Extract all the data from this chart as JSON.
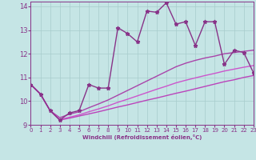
{
  "xlabel": "Windchill (Refroidissement éolien,°C)",
  "xlim": [
    0,
    23
  ],
  "ylim": [
    9,
    14.2
  ],
  "yticks": [
    9,
    10,
    11,
    12,
    13,
    14
  ],
  "xticks": [
    0,
    1,
    2,
    3,
    4,
    5,
    6,
    7,
    8,
    9,
    10,
    11,
    12,
    13,
    14,
    15,
    16,
    17,
    18,
    19,
    20,
    21,
    22,
    23
  ],
  "bg_color": "#c5e5e5",
  "grid_color": "#a8cccc",
  "line_main": {
    "x": [
      0,
      1,
      2,
      3,
      4,
      5,
      6,
      7,
      8,
      9,
      10,
      11,
      12,
      13,
      14,
      15,
      16,
      17,
      18,
      19,
      20,
      21,
      22,
      23
    ],
    "y": [
      10.7,
      10.3,
      9.6,
      9.2,
      9.5,
      9.6,
      10.7,
      10.55,
      10.55,
      13.1,
      12.85,
      12.5,
      13.8,
      13.75,
      14.15,
      13.25,
      13.35,
      12.35,
      13.35,
      13.35,
      11.55,
      12.15,
      12.05,
      11.2
    ],
    "color": "#883388",
    "lw": 1.0,
    "marker": "*",
    "ms": 3.5
  },
  "line_upper": {
    "x": [
      0,
      1,
      2,
      3,
      4,
      5,
      6,
      7,
      8,
      9,
      10,
      11,
      12,
      13,
      14,
      15,
      16,
      17,
      18,
      19,
      20,
      21,
      22,
      23
    ],
    "y": [
      10.7,
      10.3,
      9.6,
      9.3,
      9.45,
      9.55,
      9.72,
      9.88,
      10.05,
      10.25,
      10.45,
      10.65,
      10.85,
      11.05,
      11.25,
      11.45,
      11.6,
      11.72,
      11.82,
      11.9,
      12.0,
      12.05,
      12.1,
      12.15
    ],
    "color": "#aa44aa",
    "lw": 1.0
  },
  "line_mid": {
    "x": [
      0,
      1,
      2,
      3,
      4,
      5,
      6,
      7,
      8,
      9,
      10,
      11,
      12,
      13,
      14,
      15,
      16,
      17,
      18,
      19,
      20,
      21,
      22,
      23
    ],
    "y": [
      10.7,
      10.3,
      9.6,
      9.22,
      9.32,
      9.42,
      9.55,
      9.67,
      9.8,
      9.95,
      10.08,
      10.22,
      10.36,
      10.5,
      10.63,
      10.77,
      10.88,
      10.98,
      11.08,
      11.17,
      11.27,
      11.35,
      11.43,
      11.5
    ],
    "color": "#cc55cc",
    "lw": 1.0
  },
  "line_lower": {
    "x": [
      0,
      1,
      2,
      3,
      4,
      5,
      6,
      7,
      8,
      9,
      10,
      11,
      12,
      13,
      14,
      15,
      16,
      17,
      18,
      19,
      20,
      21,
      22,
      23
    ],
    "y": [
      10.7,
      10.3,
      9.6,
      9.2,
      9.28,
      9.37,
      9.46,
      9.55,
      9.65,
      9.75,
      9.84,
      9.94,
      10.04,
      10.13,
      10.23,
      10.33,
      10.42,
      10.52,
      10.62,
      10.72,
      10.82,
      10.9,
      11.0,
      11.08
    ],
    "color": "#bb44bb",
    "lw": 1.0
  }
}
